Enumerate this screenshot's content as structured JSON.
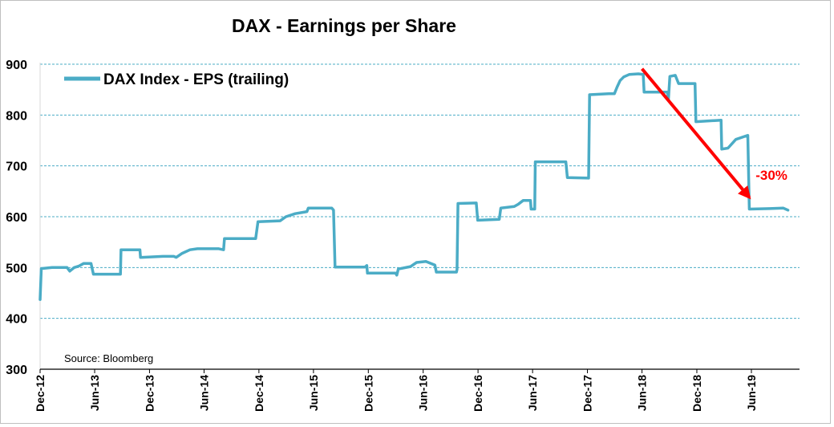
{
  "chart_data": {
    "type": "line",
    "title": "DAX - Earnings per Share",
    "source": "Source: Bloomberg",
    "xlabel": "",
    "ylabel": "",
    "ylim": [
      300,
      900
    ],
    "yticks": [
      300,
      400,
      500,
      600,
      700,
      800,
      900
    ],
    "x_tick_labels": [
      "Dec-12",
      "Jun-13",
      "Dec-13",
      "Jun-14",
      "Dec-14",
      "Jun-15",
      "Dec-15",
      "Jun-16",
      "Dec-16",
      "Jun-17",
      "Dec-17",
      "Jun-18",
      "Dec-18",
      "Jun-19"
    ],
    "grid": "horizontal dashed",
    "legend_position": "top-left",
    "colors": {
      "series": "#4bacc6",
      "grid": "#4bacc6",
      "arrow": "#ff0000",
      "annotation": "#ff0000"
    },
    "series": [
      {
        "name": "DAX Index - EPS (trailing)",
        "points": [
          [
            "2012-12-01",
            437
          ],
          [
            "2012-12-05",
            498
          ],
          [
            "2013-01-10",
            500
          ],
          [
            "2013-03-01",
            500
          ],
          [
            "2013-03-10",
            493
          ],
          [
            "2013-03-25",
            500
          ],
          [
            "2013-04-10",
            503
          ],
          [
            "2013-04-25",
            508
          ],
          [
            "2013-05-20",
            508
          ],
          [
            "2013-05-28",
            487
          ],
          [
            "2013-07-15",
            487
          ],
          [
            "2013-08-26",
            487
          ],
          [
            "2013-08-28",
            535
          ],
          [
            "2013-10-30",
            535
          ],
          [
            "2013-11-01",
            520
          ],
          [
            "2014-01-15",
            522
          ],
          [
            "2014-02-20",
            522
          ],
          [
            "2014-02-28",
            520
          ],
          [
            "2014-03-20",
            528
          ],
          [
            "2014-04-15",
            535
          ],
          [
            "2014-05-10",
            537
          ],
          [
            "2014-07-20",
            537
          ],
          [
            "2014-08-05",
            535
          ],
          [
            "2014-08-08",
            557
          ],
          [
            "2014-11-20",
            557
          ],
          [
            "2014-11-28",
            590
          ],
          [
            "2015-02-10",
            592
          ],
          [
            "2015-03-01",
            600
          ],
          [
            "2015-04-01",
            606
          ],
          [
            "2015-05-10",
            610
          ],
          [
            "2015-05-15",
            617
          ],
          [
            "2015-08-01",
            617
          ],
          [
            "2015-08-07",
            613
          ],
          [
            "2015-08-12",
            501
          ],
          [
            "2015-11-20",
            501
          ],
          [
            "2015-11-26",
            504
          ],
          [
            "2015-11-28",
            489
          ],
          [
            "2016-03-01",
            489
          ],
          [
            "2016-03-05",
            485
          ],
          [
            "2016-03-10",
            497
          ],
          [
            "2016-04-20",
            502
          ],
          [
            "2016-05-10",
            510
          ],
          [
            "2016-06-10",
            512
          ],
          [
            "2016-07-10",
            505
          ],
          [
            "2016-07-15",
            491
          ],
          [
            "2016-09-20",
            491
          ],
          [
            "2016-09-22",
            496
          ],
          [
            "2016-09-25",
            626
          ],
          [
            "2016-11-25",
            627
          ],
          [
            "2016-11-30",
            593
          ],
          [
            "2017-02-10",
            595
          ],
          [
            "2017-02-15",
            617
          ],
          [
            "2017-04-01",
            620
          ],
          [
            "2017-04-15",
            625
          ],
          [
            "2017-05-01",
            632
          ],
          [
            "2017-05-25",
            632
          ],
          [
            "2017-05-27",
            615
          ],
          [
            "2017-06-08",
            615
          ],
          [
            "2017-06-10",
            708
          ],
          [
            "2017-09-20",
            708
          ],
          [
            "2017-09-25",
            677
          ],
          [
            "2017-12-05",
            676
          ],
          [
            "2017-12-08",
            840
          ],
          [
            "2018-02-10",
            842
          ],
          [
            "2018-03-01",
            842
          ],
          [
            "2018-03-10",
            855
          ],
          [
            "2018-03-20",
            868
          ],
          [
            "2018-04-01",
            875
          ],
          [
            "2018-04-20",
            880
          ],
          [
            "2018-05-20",
            881
          ],
          [
            "2018-06-05",
            880
          ],
          [
            "2018-06-08",
            845
          ],
          [
            "2018-08-25",
            845
          ],
          [
            "2018-08-28",
            830
          ],
          [
            "2018-09-02",
            876
          ],
          [
            "2018-09-20",
            878
          ],
          [
            "2018-10-01",
            862
          ],
          [
            "2018-11-25",
            862
          ],
          [
            "2018-11-28",
            787
          ],
          [
            "2019-02-20",
            790
          ],
          [
            "2019-02-22",
            733
          ],
          [
            "2019-03-15",
            735
          ],
          [
            "2019-04-10",
            752
          ],
          [
            "2019-05-10",
            758
          ],
          [
            "2019-05-20",
            760
          ],
          [
            "2019-05-25",
            615
          ],
          [
            "2019-08-01",
            616
          ],
          [
            "2019-09-15",
            617
          ],
          [
            "2019-10-01",
            613
          ]
        ]
      }
    ],
    "annotations": [
      {
        "type": "arrow",
        "from": [
          "2018-06-01",
          891
        ],
        "to": [
          "2019-05-25",
          638
        ]
      },
      {
        "type": "text",
        "text": "-30%",
        "at": [
          "2019-06-15",
          673
        ]
      }
    ]
  }
}
